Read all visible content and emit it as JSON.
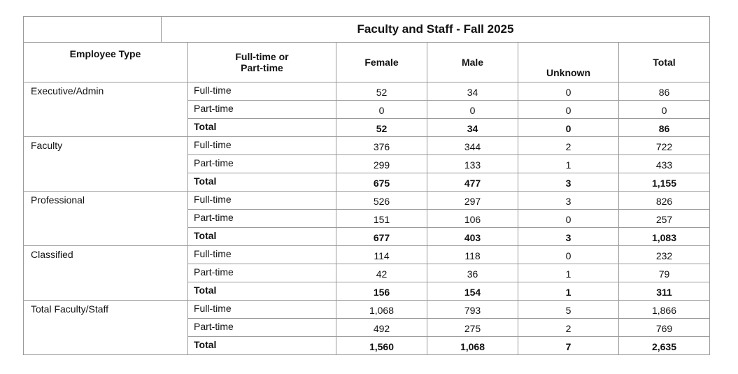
{
  "title": "Faculty and Staff - Fall 2025",
  "header": [
    "Employee Type",
    "Full-time or Part-time",
    "Female",
    "Male",
    "Unknown",
    "Total"
  ],
  "groups": [
    {
      "type": "Executive/Admin",
      "rows": [
        [
          "Full-time",
          "52",
          "34",
          "0",
          "86"
        ],
        [
          "Part-time",
          "0",
          "0",
          "0",
          "0"
        ],
        [
          "Total",
          "52",
          "34",
          "0",
          "86"
        ]
      ]
    },
    {
      "type": "Faculty",
      "rows": [
        [
          "Full-time",
          "376",
          "344",
          "2",
          "722"
        ],
        [
          "Part-time",
          "299",
          "133",
          "1",
          "433"
        ],
        [
          "Total",
          "675",
          "477",
          "3",
          "1,155"
        ]
      ]
    },
    {
      "type": "Professional",
      "rows": [
        [
          "Full-time",
          "526",
          "297",
          "3",
          "826"
        ],
        [
          "Part-time",
          "151",
          "106",
          "0",
          "257"
        ],
        [
          "Total",
          "677",
          "403",
          "3",
          "1,083"
        ]
      ]
    },
    {
      "type": "Classified",
      "rows": [
        [
          "Full-time",
          "114",
          "118",
          "0",
          "232"
        ],
        [
          "Part-time",
          "42",
          "36",
          "1",
          "79"
        ],
        [
          "Total",
          "156",
          "154",
          "1",
          "311"
        ]
      ]
    },
    {
      "type": "Total Faculty/Staff",
      "rows": [
        [
          "Full-time",
          "1,068",
          "793",
          "5",
          "1,866"
        ],
        [
          "Part-time",
          "492",
          "275",
          "2",
          "769"
        ],
        [
          "Total",
          "1,560",
          "1,068",
          "7",
          "2,635"
        ]
      ]
    }
  ]
}
